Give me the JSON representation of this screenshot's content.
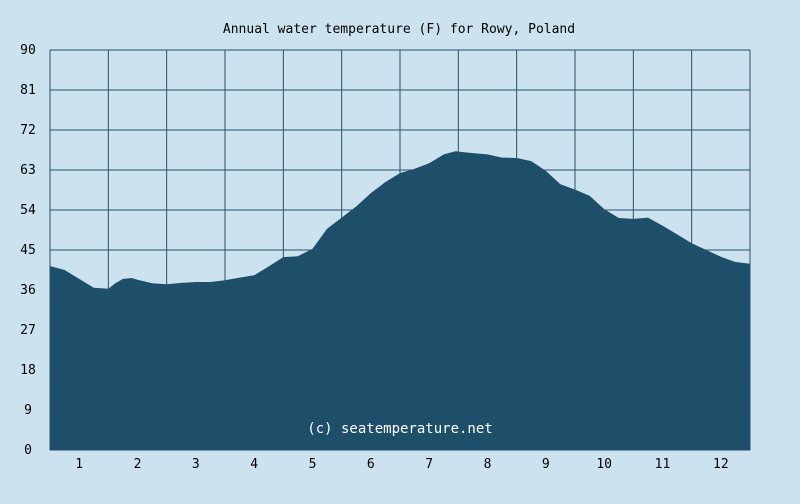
{
  "chart_data": {
    "type": "area",
    "title": "Annual water temperature (F) for Rowy, Poland",
    "xlabel": "",
    "ylabel": "",
    "ylim": [
      0,
      90
    ],
    "y_ticks": [
      0,
      9,
      18,
      27,
      36,
      45,
      54,
      63,
      72,
      81,
      90
    ],
    "x_range": [
      0.5,
      12.5
    ],
    "x_ticks": [
      1,
      2,
      3,
      4,
      5,
      6,
      7,
      8,
      9,
      10,
      11,
      12
    ],
    "grid": true,
    "series": [
      {
        "x": [
          0.5,
          0.75,
          1.0,
          1.25,
          1.5,
          1.62,
          1.75,
          1.9,
          2.0,
          2.25,
          2.5,
          2.75,
          3.0,
          3.25,
          3.5,
          3.75,
          4.0,
          4.25,
          4.5,
          4.75,
          5.0,
          5.25,
          5.5,
          5.75,
          6.0,
          6.25,
          6.5,
          6.75,
          7.0,
          7.25,
          7.45,
          7.6,
          7.75,
          8.0,
          8.25,
          8.5,
          8.75,
          9.0,
          9.25,
          9.5,
          9.75,
          10.0,
          10.25,
          10.5,
          10.75,
          11.0,
          11.25,
          11.5,
          11.75,
          12.0,
          12.25,
          12.5
        ],
        "y": [
          41.4,
          40.5,
          38.5,
          36.5,
          36.3,
          37.5,
          38.5,
          38.7,
          38.3,
          37.5,
          37.3,
          37.6,
          37.8,
          37.8,
          38.2,
          38.8,
          39.3,
          41.3,
          43.4,
          43.6,
          45.3,
          49.8,
          52.3,
          54.8,
          57.8,
          60.3,
          62.3,
          63.3,
          64.5,
          66.5,
          67.2,
          67.0,
          66.8,
          66.5,
          65.8,
          65.7,
          65.0,
          62.8,
          59.8,
          58.6,
          57.2,
          54.2,
          52.2,
          52.0,
          52.3,
          50.5,
          48.5,
          46.5,
          45.0,
          43.5,
          42.3,
          41.9
        ]
      }
    ],
    "colors": {
      "background": "#cce3ef",
      "fill": "#1e4f6a",
      "grid": "#26506a",
      "text": "#000000",
      "watermark": "#ffffff"
    }
  },
  "watermark": "(c) seatemperature.net"
}
